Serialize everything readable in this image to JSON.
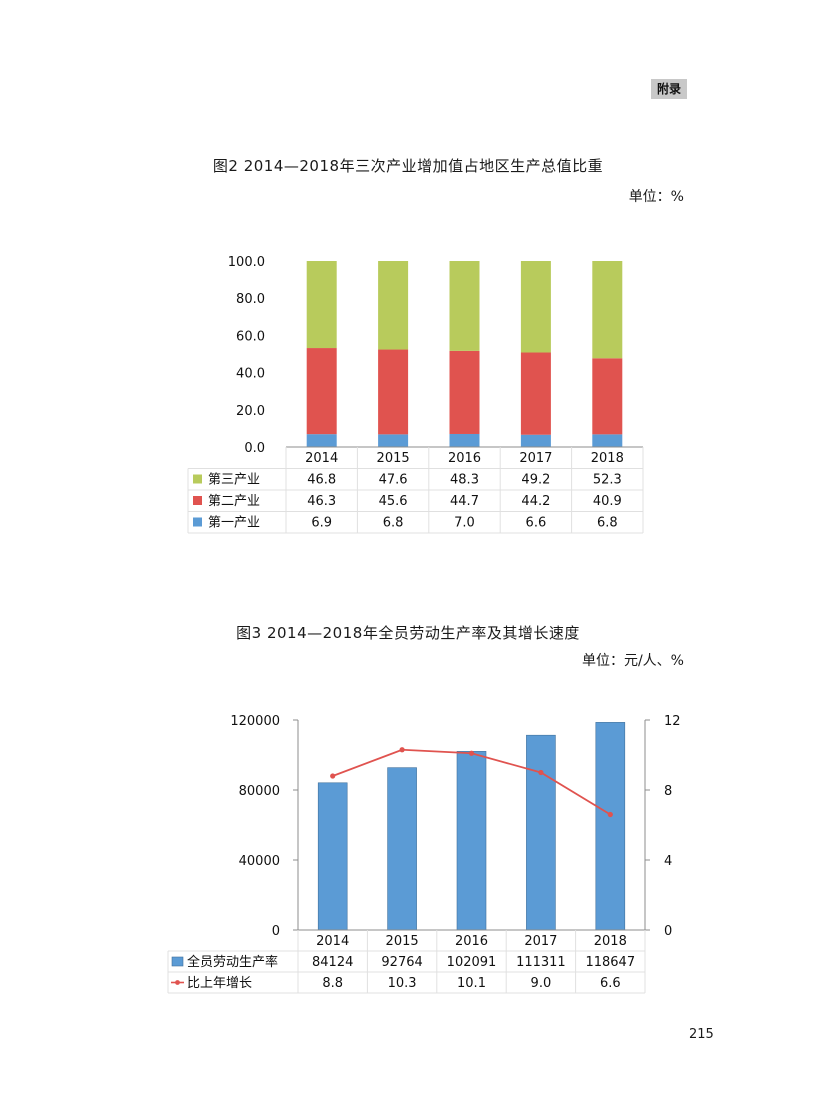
{
  "header": {
    "appendix": "附录"
  },
  "figure2": {
    "title": "图2 2014—2018年三次产业增加值占地区生产总值比重",
    "unit": "单位：%"
  },
  "figure3": {
    "title": "图3 2014—2018年全员劳动生产率及其增长速度",
    "unit": "单位：元/人、%"
  },
  "page_number": "215",
  "chart_data": [
    {
      "type": "bar",
      "stacked": true,
      "categories": [
        "2014",
        "2015",
        "2016",
        "2017",
        "2018"
      ],
      "yticks": [
        "0.0",
        "20.0",
        "40.0",
        "60.0",
        "80.0",
        "100.0"
      ],
      "ylim": [
        0,
        100
      ],
      "series": [
        {
          "name": "第一产业",
          "color": "#5b9bd5",
          "values": [
            6.9,
            6.8,
            7.0,
            6.6,
            6.8
          ],
          "labels": [
            "6.9",
            "6.8",
            "7.0",
            "6.6",
            "6.8"
          ]
        },
        {
          "name": "第二产业",
          "color": "#e0534f",
          "values": [
            46.3,
            45.6,
            44.7,
            44.2,
            40.9
          ],
          "labels": [
            "46.3",
            "45.6",
            "44.7",
            "44.2",
            "40.9"
          ]
        },
        {
          "name": "第三产业",
          "color": "#b8cb5c",
          "values": [
            46.8,
            47.6,
            48.3,
            49.2,
            52.3
          ],
          "labels": [
            "46.8",
            "47.6",
            "48.3",
            "49.2",
            "52.3"
          ]
        }
      ],
      "table_order": [
        "第三产业",
        "第二产业",
        "第一产业"
      ],
      "grid": false
    },
    {
      "type": "bar",
      "categories": [
        "2014",
        "2015",
        "2016",
        "2017",
        "2018"
      ],
      "bars": {
        "name": "全员劳动生产率",
        "color": "#5b9bd5",
        "values": [
          84124,
          92764,
          102091,
          111311,
          118647
        ],
        "labels": [
          "84124",
          "92764",
          "102091",
          "111311",
          "118647"
        ]
      },
      "line": {
        "name": "比上年增长",
        "color": "#e0534f",
        "values": [
          8.8,
          10.3,
          10.1,
          9.0,
          6.6
        ],
        "labels": [
          "8.8",
          "10.3",
          "10.1",
          "9.0",
          "6.6"
        ]
      },
      "yticks_left": [
        "0",
        "40000",
        "80000",
        "120000"
      ],
      "ylim_left": [
        0,
        120000
      ],
      "yticks_right": [
        "0",
        "4",
        "8",
        "12"
      ],
      "ylim_right": [
        0,
        12
      ],
      "grid": false
    }
  ]
}
